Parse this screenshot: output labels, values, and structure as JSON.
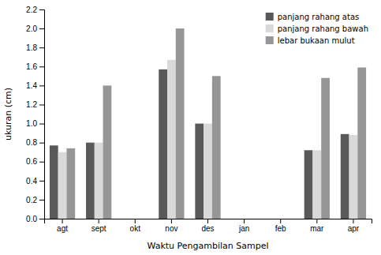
{
  "chart_data": {
    "type": "bar",
    "categories": [
      "agt",
      "sept",
      "okt",
      "nov",
      "des",
      "jan",
      "feb",
      "mar",
      "apr"
    ],
    "series": [
      {
        "name": "panjang rahang atas",
        "color": "#595959",
        "values": [
          0.77,
          0.8,
          0.0,
          1.57,
          1.0,
          0.0,
          0.0,
          0.72,
          0.89
        ]
      },
      {
        "name": "panjang rahang bawah",
        "color": "#d9d9d9",
        "values": [
          0.7,
          0.8,
          0.0,
          1.67,
          1.0,
          0.0,
          0.0,
          0.72,
          0.88
        ]
      },
      {
        "name": "lebar bukaan mulut",
        "color": "#969696",
        "values": [
          0.74,
          1.4,
          0.0,
          2.0,
          1.5,
          0.0,
          0.0,
          1.48,
          1.59
        ]
      }
    ],
    "xlabel": "Waktu Pengambilan Sampel",
    "ylabel": "ukuran (cm)",
    "ylim": [
      0.0,
      2.2
    ],
    "yticks": [
      {
        "value": 0.0,
        "label": "0.0"
      },
      0.2,
      0.4,
      0.6,
      0.8,
      {
        "value": 1.0,
        "label": "1.0"
      },
      1.2,
      1.4,
      1.6,
      1.8,
      {
        "value": 2.0,
        "label": "2.0"
      },
      2.2
    ],
    "grid": false,
    "legend": "upper right"
  }
}
